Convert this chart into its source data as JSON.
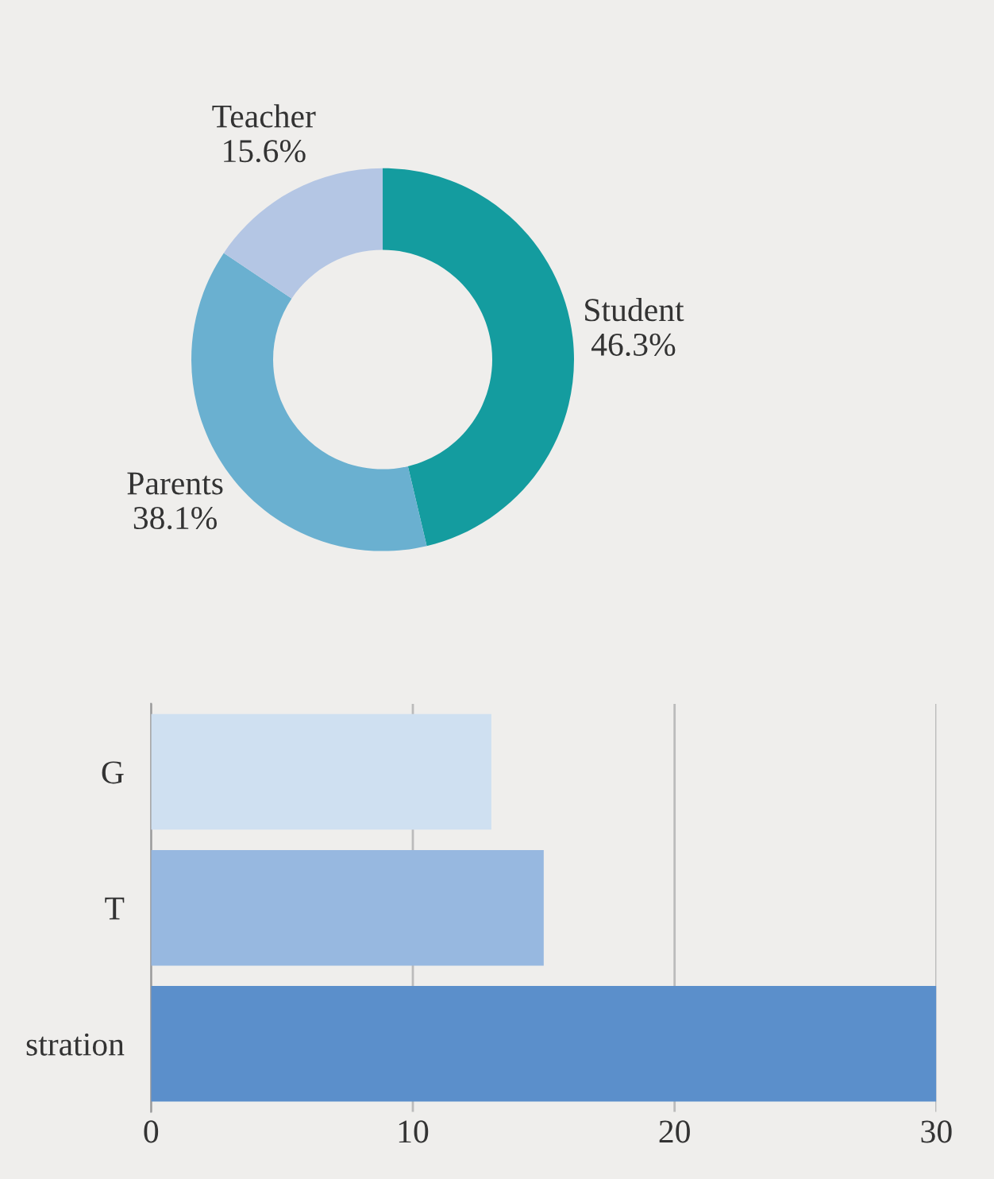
{
  "chart_data": [
    {
      "type": "donut",
      "categories": [
        "Student",
        "Parents",
        "Teacher"
      ],
      "values": [
        46.3,
        38.1,
        15.6
      ],
      "value_labels": [
        "46.3%",
        "38.1%",
        "15.6%"
      ],
      "colors": [
        "#149c9f",
        "#6ab0d0",
        "#b4c6e4"
      ]
    },
    {
      "type": "bar",
      "orientation": "horizontal",
      "categories": [
        "G",
        "T",
        "stration"
      ],
      "values": [
        13,
        15,
        30
      ],
      "colors": [
        "#cfe0f1",
        "#97b8e0",
        "#5b8fcb"
      ],
      "xlim": [
        0,
        30
      ],
      "xticks": [
        0,
        10,
        20,
        30
      ],
      "grid": "x"
    }
  ]
}
